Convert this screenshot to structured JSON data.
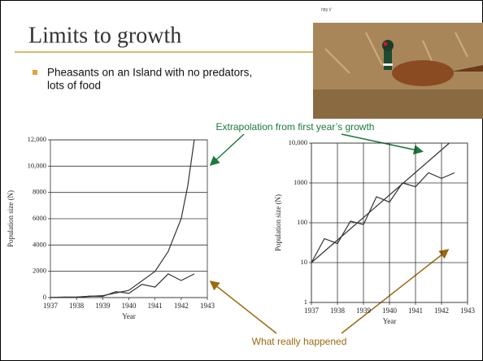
{
  "slide": {
    "url": "http://",
    "title": "Limits to growth",
    "bullet": [
      "Pheasants on an Island with no predators,",
      "lots of food"
    ],
    "annotation_top": "Extrapolation from first year’s growth",
    "annotation_bottom": "What really happened"
  },
  "chart_data": [
    {
      "type": "line",
      "xlabel": "Year",
      "ylabel": "Population size (N)",
      "xlim": [
        1937,
        1943
      ],
      "xticks": [
        1937,
        1938,
        1939,
        1940,
        1941,
        1942,
        1943
      ],
      "ylim": [
        0,
        12000
      ],
      "yticks": [
        0,
        2000,
        4000,
        6000,
        8000,
        {
          "value": 10000,
          "label": "10,000"
        },
        {
          "value": 12000,
          "label": "12,000"
        }
      ],
      "grid": true,
      "xgrid": false,
      "log": false,
      "series": [
        {
          "color": "#333333",
          "x": [
            1937,
            1938,
            1939,
            1940,
            1941,
            1941.5,
            1942,
            1942.25,
            1942.5
          ],
          "values": [
            10,
            40,
            150,
            550,
            2000,
            3500,
            6000,
            8500,
            12000
          ]
        },
        {
          "color": "#333333",
          "x": [
            1937,
            1937.5,
            1938,
            1938.5,
            1939,
            1939.5,
            1940,
            1940.5,
            1941,
            1941.5,
            1942,
            1942.5
          ],
          "values": [
            10,
            40,
            30,
            110,
            90,
            450,
            330,
            1000,
            800,
            1800,
            1300,
            1800
          ]
        }
      ]
    },
    {
      "type": "line",
      "xlabel": "Year",
      "ylabel": "Population size (N)",
      "xlim": [
        1937,
        1943
      ],
      "xticks": [
        1937,
        1938,
        1939,
        1940,
        1941,
        1942,
        1943
      ],
      "ylim": [
        1,
        10000
      ],
      "yticks": [
        1,
        10,
        100,
        1000,
        {
          "value": 10000,
          "label": "10,000"
        }
      ],
      "grid": true,
      "xgrid": true,
      "log": true,
      "series": [
        {
          "color": "#333333",
          "x": [
            1937,
            1942.3
          ],
          "values": [
            10,
            10000
          ]
        },
        {
          "color": "#333333",
          "x": [
            1937,
            1937.5,
            1938,
            1938.5,
            1939,
            1939.5,
            1940,
            1940.5,
            1941,
            1941.5,
            1942,
            1942.5
          ],
          "values": [
            10,
            40,
            30,
            110,
            90,
            450,
            330,
            1000,
            800,
            1800,
            1300,
            1800
          ]
        }
      ]
    }
  ]
}
